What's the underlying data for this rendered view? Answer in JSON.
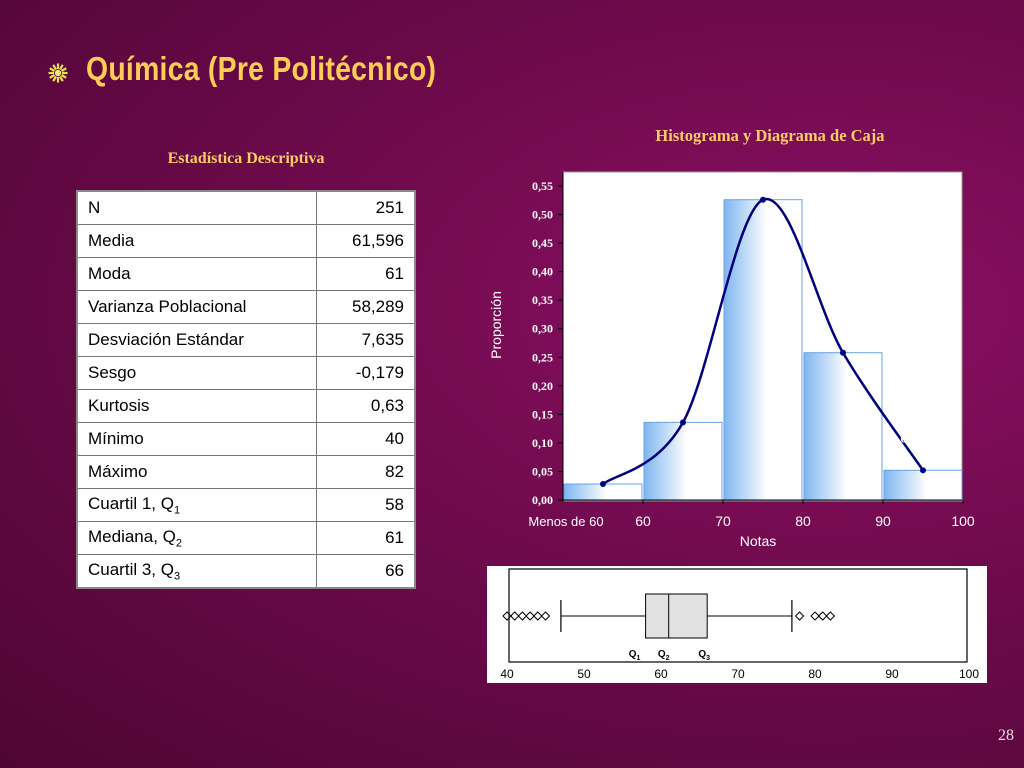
{
  "slide": {
    "title": "Química (Pre Politécnico)",
    "page_number": "28",
    "colors": {
      "title": "#ffcc55",
      "background": "#6e0a4c",
      "bars": "#9cc8f4",
      "curve": "#000080"
    },
    "bullet_icon": "sun-burst-bullet"
  },
  "stats": {
    "heading": "Estadística Descriptiva",
    "rows": [
      {
        "label": "N",
        "sub": "",
        "value": "251"
      },
      {
        "label": "Media",
        "sub": "",
        "value": "61,596"
      },
      {
        "label": "Moda",
        "sub": "",
        "value": "61"
      },
      {
        "label": "Varianza Poblacional",
        "sub": "",
        "value": "58,289"
      },
      {
        "label": "Desviación Estándar",
        "sub": "",
        "value": "7,635"
      },
      {
        "label": "Sesgo",
        "sub": "",
        "value": "-0,179"
      },
      {
        "label": "Kurtosis",
        "sub": "",
        "value": "0,63"
      },
      {
        "label": "Mínimo",
        "sub": "",
        "value": "40"
      },
      {
        "label": "Máximo",
        "sub": "",
        "value": "82"
      },
      {
        "label": "Cuartil 1, Q",
        "sub": "1",
        "value": "58"
      },
      {
        "label": "Mediana, Q",
        "sub": "2",
        "value": "61"
      },
      {
        "label": "Cuartil 3, Q",
        "sub": "3",
        "value": "66"
      }
    ]
  },
  "chart_data": [
    {
      "type": "bar",
      "title": "Histograma y Diagrama de Caja",
      "xlabel": "Notas",
      "ylabel": "Proporción",
      "x_tick_labels": [
        "Menos de 60",
        "60",
        "70",
        "80",
        "90",
        "100"
      ],
      "y_ticks": [
        "0,00",
        "0,05",
        "0,10",
        "0,15",
        "0,20",
        "0,25",
        "0,30",
        "0,35",
        "0,40",
        "0,45",
        "0,50",
        "0,55"
      ],
      "ylim": [
        0,
        0.55
      ],
      "categories": [
        "Menos de 60",
        "60-70",
        "70-80",
        "80-90",
        "90-100"
      ],
      "values": [
        0.028,
        0.136,
        0.526,
        0.258,
        0.052
      ],
      "data_labels": [
        "",
        "0,136",
        "0,526",
        "0,258",
        "0,052"
      ],
      "curve_points": [
        [
          55,
          0.028
        ],
        [
          65,
          0.136
        ],
        [
          75,
          0.526
        ],
        [
          85,
          0.258
        ],
        [
          95,
          0.052
        ]
      ],
      "grid": false
    },
    {
      "type": "box",
      "xlim": [
        40,
        100
      ],
      "x_tick_labels": [
        "40",
        "50",
        "60",
        "70",
        "80",
        "90",
        "100"
      ],
      "whisker_low": 47,
      "q1": 58,
      "median": 61,
      "q3": 66,
      "whisker_high": 77,
      "outliers": [
        40,
        41,
        42,
        43,
        44,
        45,
        78,
        80,
        81,
        82
      ],
      "quartile_labels": [
        {
          "main": "Q",
          "sub": "1"
        },
        {
          "main": "Q",
          "sub": "2"
        },
        {
          "main": "Q",
          "sub": "3"
        }
      ]
    }
  ]
}
